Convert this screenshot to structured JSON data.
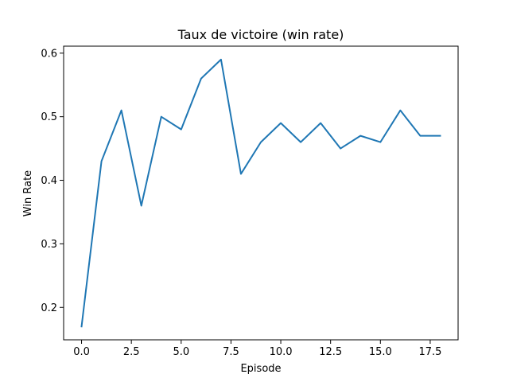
{
  "chart_data": {
    "type": "line",
    "title": "Taux de victoire (win rate)",
    "xlabel": "Episode",
    "ylabel": "Win Rate",
    "xlim": [
      -0.9,
      18.9
    ],
    "ylim": [
      0.149,
      0.611
    ],
    "x_ticks": [
      0,
      2.5,
      5,
      7.5,
      10,
      12.5,
      15,
      17.5
    ],
    "x_tick_labels": [
      "0.0",
      "2.5",
      "5.0",
      "7.5",
      "10.0",
      "12.5",
      "15.0",
      "17.5"
    ],
    "y_ticks": [
      0.2,
      0.3,
      0.4,
      0.5,
      0.6
    ],
    "y_tick_labels": [
      "0.2",
      "0.3",
      "0.4",
      "0.5",
      "0.6"
    ],
    "grid": false,
    "legend": "none",
    "series": [
      {
        "color": "#1f77b4",
        "x": [
          0,
          1,
          2,
          3,
          4,
          5,
          6,
          7,
          8,
          9,
          10,
          11,
          12,
          13,
          14,
          15,
          16,
          17,
          18
        ],
        "values": [
          0.17,
          0.43,
          0.51,
          0.36,
          0.5,
          0.48,
          0.56,
          0.59,
          0.41,
          0.46,
          0.49,
          0.46,
          0.49,
          0.45,
          0.47,
          0.46,
          0.51,
          0.47,
          0.47
        ]
      }
    ]
  }
}
